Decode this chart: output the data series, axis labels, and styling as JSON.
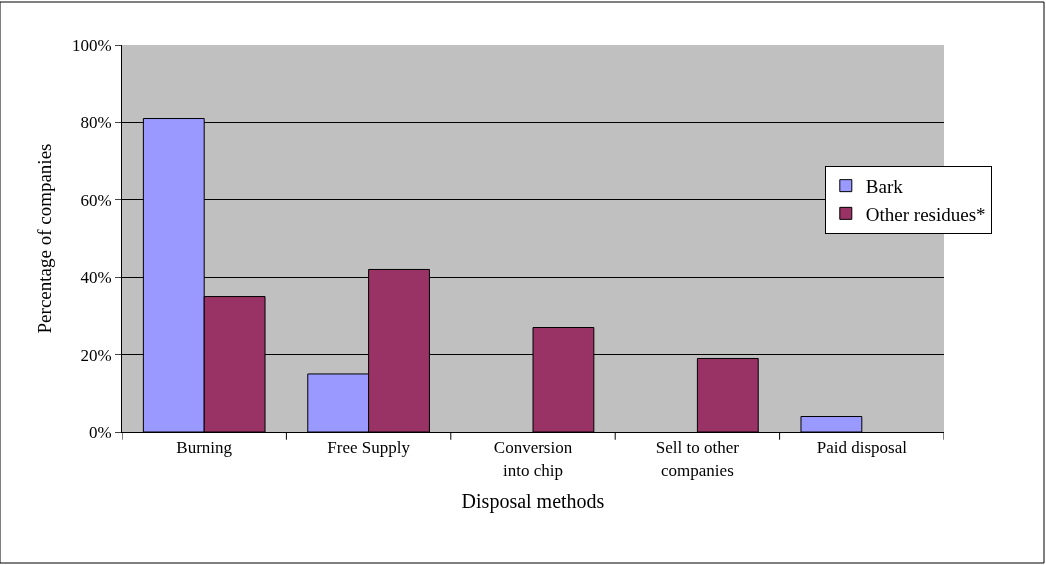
{
  "chart_data": {
    "type": "bar",
    "xlabel": "Disposal methods",
    "ylabel": "Percentage of companies",
    "categories": [
      "Burning",
      "Free Supply",
      "Conversion into chip",
      "Sell to other companies",
      "Paid disposal"
    ],
    "series": [
      {
        "name": "Bark",
        "color": "#9999ff",
        "values": [
          81,
          15,
          0,
          0,
          4
        ]
      },
      {
        "name": "Other residues*",
        "color": "#993366",
        "values": [
          35,
          42,
          27,
          19,
          0
        ]
      }
    ],
    "ylim": [
      0,
      100
    ],
    "yticks": [
      {
        "value": 0,
        "label": "0%"
      },
      {
        "value": 20,
        "label": "20%"
      },
      {
        "value": 40,
        "label": "40%"
      },
      {
        "value": 60,
        "label": "60%"
      },
      {
        "value": 80,
        "label": "80%"
      },
      {
        "value": 100,
        "label": "100%"
      }
    ],
    "grid": "y",
    "legend": "right"
  }
}
